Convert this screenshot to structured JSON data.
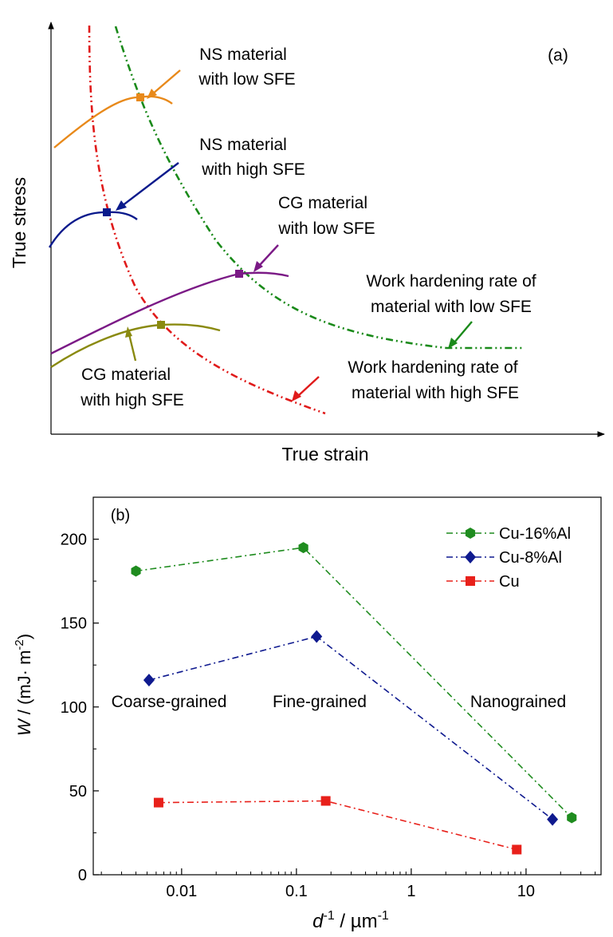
{
  "colors": {
    "axis": "#000000",
    "ns_low_sfe": "#E8891A",
    "ns_high_sfe": "#0A1A8C",
    "cg_low_sfe": "#7B1A86",
    "cg_high_sfe": "#8A8A10",
    "whr_low_sfe": "#1A8A1A",
    "whr_high_sfe": "#E01A1A",
    "cu16al": "#1F8C1F",
    "cu8al": "#0F1A8F",
    "cu": "#E8201A"
  },
  "chart_data": [
    {
      "type": "line",
      "panel_label": "(a)",
      "xlabel": "True strain",
      "ylabel": "True stress",
      "ticks": "none",
      "schematic": true,
      "annotations": [
        {
          "id": "ns_low",
          "lines": [
            "NS material",
            "with low SFE"
          ],
          "color_key": "ns_low_sfe"
        },
        {
          "id": "ns_high",
          "lines": [
            "NS material",
            "with high SFE"
          ],
          "color_key": "ns_high_sfe"
        },
        {
          "id": "cg_low",
          "lines": [
            "CG material",
            "with low SFE"
          ],
          "color_key": "cg_low_sfe"
        },
        {
          "id": "cg_high",
          "lines": [
            "CG material",
            "with high SFE"
          ],
          "color_key": "cg_high_sfe"
        },
        {
          "id": "whr_low",
          "lines": [
            "Work hardening rate of",
            "material with low SFE"
          ],
          "color_key": "whr_low_sfe"
        },
        {
          "id": "whr_high",
          "lines": [
            "Work hardening rate of",
            "material with high SFE"
          ],
          "color_key": "whr_high_sfe"
        }
      ]
    },
    {
      "type": "line",
      "panel_label": "(b)",
      "xlabel": "d⁻¹ / µm⁻¹",
      "xlabel_parts": {
        "var": "d",
        "sup1": "-1",
        "mid": " / µm",
        "sup2": "-1"
      },
      "ylabel_parts": {
        "var": "W",
        "rest": " / (mJ· m",
        "sup": "-2",
        "close": ")"
      },
      "x_scale": "log",
      "xlim": [
        0.0017,
        45
      ],
      "ylim": [
        0,
        225
      ],
      "x_ticks": [
        0.01,
        0.1,
        1,
        10
      ],
      "x_tick_labels": [
        "0.01",
        "0.1",
        "1",
        "10"
      ],
      "y_ticks": [
        0,
        50,
        100,
        150,
        200
      ],
      "y_tick_labels": [
        "0",
        "50",
        "100",
        "150",
        "200"
      ],
      "legend_position": "top-right",
      "series": [
        {
          "name": "Cu-16%Al",
          "marker": "hexagon",
          "color_key": "cu16al",
          "x": [
            0.004,
            0.115,
            25
          ],
          "y": [
            181,
            195,
            34
          ]
        },
        {
          "name": "Cu-8%Al",
          "marker": "diamond",
          "color_key": "cu8al",
          "x": [
            0.0052,
            0.15,
            17
          ],
          "y": [
            116,
            142,
            33
          ]
        },
        {
          "name": "Cu",
          "marker": "square",
          "color_key": "cu",
          "x": [
            0.0063,
            0.18,
            8.3
          ],
          "y": [
            43,
            44,
            15
          ]
        }
      ],
      "annotations": [
        "Coarse-grained",
        "Fine-grained",
        "Nanograined"
      ]
    }
  ]
}
